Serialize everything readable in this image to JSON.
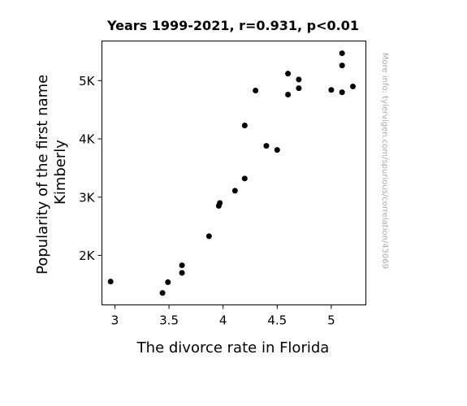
{
  "chart_data": {
    "type": "scatter",
    "title": "Years 1999-2021, r=0.931, p<0.01",
    "xlabel": "The divorce rate in Florida",
    "ylabel_lines": [
      "Popularity of the first name",
      "Kimberly"
    ],
    "watermark": "More info: tylervigen.com/spurious/correlation/43069",
    "xlim": [
      2.88,
      5.32
    ],
    "ylim": [
      1150,
      5680
    ],
    "x_ticks": [
      {
        "value": 3,
        "label": "3"
      },
      {
        "value": 3.5,
        "label": "3.5"
      },
      {
        "value": 4,
        "label": "4"
      },
      {
        "value": 4.5,
        "label": "4.5"
      },
      {
        "value": 5,
        "label": "5"
      }
    ],
    "y_ticks": [
      {
        "value": 2000,
        "label": "2K"
      },
      {
        "value": 3000,
        "label": "3K"
      },
      {
        "value": 4000,
        "label": "4K"
      },
      {
        "value": 5000,
        "label": "5K"
      }
    ],
    "grid": false,
    "marker_color": "#000000",
    "points": [
      {
        "x": 2.96,
        "y": 1550
      },
      {
        "x": 3.44,
        "y": 1355
      },
      {
        "x": 3.49,
        "y": 1540
      },
      {
        "x": 3.62,
        "y": 1830
      },
      {
        "x": 3.62,
        "y": 1700
      },
      {
        "x": 3.87,
        "y": 2330
      },
      {
        "x": 3.96,
        "y": 2850
      },
      {
        "x": 3.97,
        "y": 2900
      },
      {
        "x": 4.11,
        "y": 3110
      },
      {
        "x": 4.2,
        "y": 3320
      },
      {
        "x": 4.2,
        "y": 4230
      },
      {
        "x": 4.3,
        "y": 4830
      },
      {
        "x": 4.4,
        "y": 3880
      },
      {
        "x": 4.5,
        "y": 3810
      },
      {
        "x": 4.6,
        "y": 5120
      },
      {
        "x": 4.6,
        "y": 4760
      },
      {
        "x": 4.7,
        "y": 5020
      },
      {
        "x": 4.7,
        "y": 4870
      },
      {
        "x": 5.0,
        "y": 4840
      },
      {
        "x": 5.1,
        "y": 5470
      },
      {
        "x": 5.1,
        "y": 5260
      },
      {
        "x": 5.1,
        "y": 4800
      },
      {
        "x": 5.2,
        "y": 4900
      }
    ]
  }
}
